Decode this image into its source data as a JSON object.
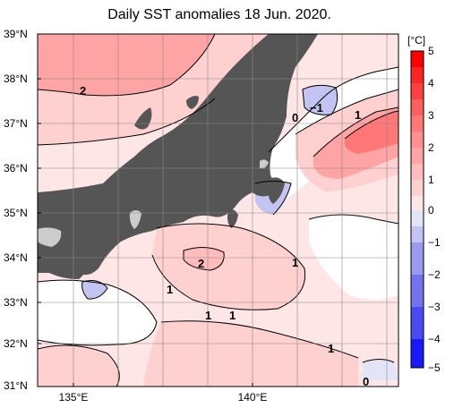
{
  "title": "Daily SST anomalies 18 Jun. 2020.",
  "latitude_labels": [
    "39°N",
    "38°N",
    "37°N",
    "36°N",
    "35°N",
    "34°N",
    "33°N",
    "32°N",
    "31°N"
  ],
  "longitude_labels": [
    "135°E",
    "140°E"
  ],
  "colorbar": {
    "unit": "[°C]",
    "ticks": [
      "5",
      "4",
      "3",
      "2",
      "1",
      "0",
      "−1",
      "−2",
      "−3",
      "−4",
      "−5"
    ],
    "colors": {
      "m5": "#1919ff",
      "m4": "#4a4af5",
      "m3": "#7373ee",
      "m2": "#9999ee",
      "m1": "#c4c4f2",
      "m05": "#e4e4f8",
      "p05": "#ffe6e6",
      "p1": "#ffd0d0",
      "p15": "#ffbcbc",
      "p2": "#ffa4a4",
      "p25": "#ff8e8e",
      "p3": "#ff7777",
      "p35": "#ff5e5e",
      "p4": "#ff4040",
      "p45": "#ff2424",
      "p5": "#ff0000"
    }
  },
  "contour_labels": [
    {
      "text": "2"
    },
    {
      "text": "0"
    },
    {
      "text": "−1"
    },
    {
      "text": "1"
    },
    {
      "text": "2"
    },
    {
      "text": "1"
    },
    {
      "text": "1"
    },
    {
      "text": "1"
    },
    {
      "text": "1"
    },
    {
      "text": "1"
    },
    {
      "text": "0"
    }
  ],
  "colors": {
    "land": "#555555",
    "lake": "#cccccc",
    "grid": "#888888"
  }
}
